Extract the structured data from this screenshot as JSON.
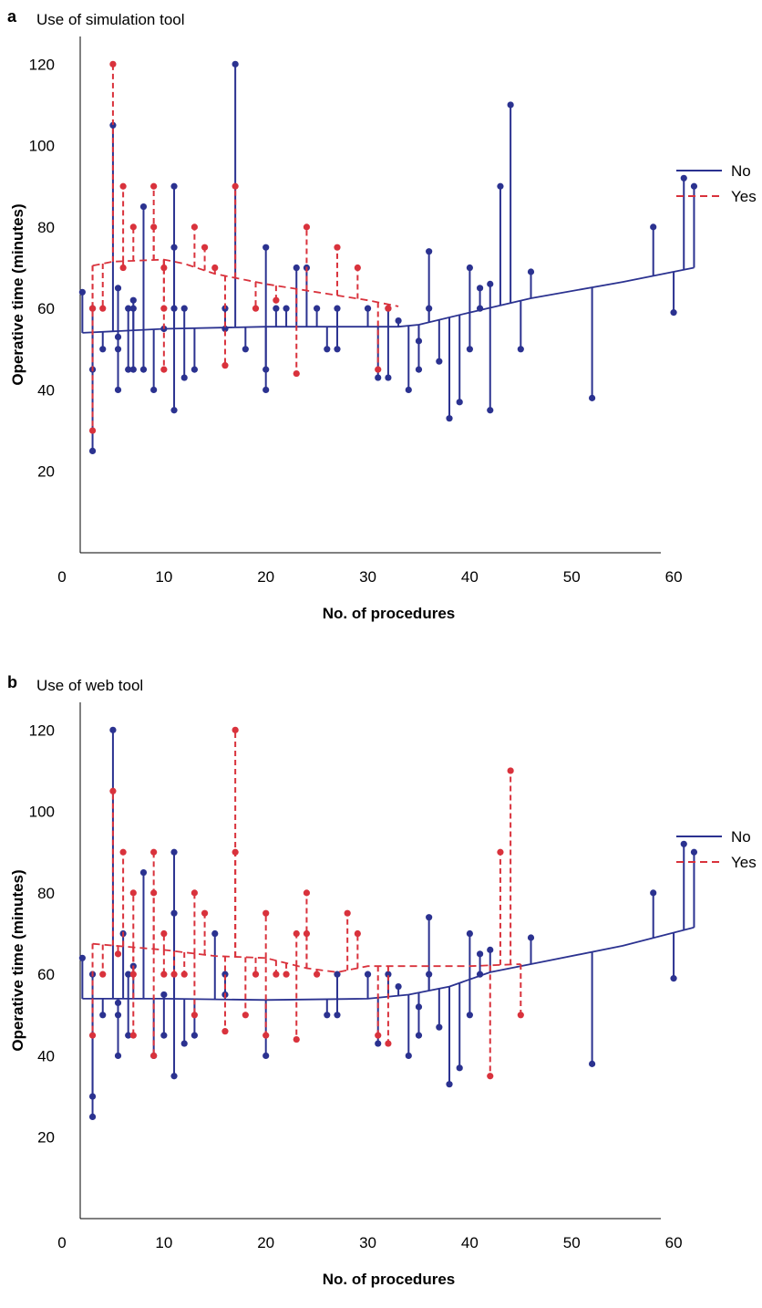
{
  "chart_data": [
    {
      "panel": "a",
      "title": "Use of simulation tool",
      "type": "line",
      "xlabel": "No. of procedures",
      "ylabel": "Operative time (minutes)",
      "xlim": [
        0,
        65
      ],
      "ylim": [
        0,
        125
      ],
      "xticks": [
        0,
        10,
        20,
        30,
        40,
        50,
        60
      ],
      "yticks": [
        20,
        40,
        60,
        80,
        100,
        120
      ],
      "grid": false,
      "legend_position": "right",
      "colors": {
        "No": "#2b3290",
        "Yes": "#d9323c"
      },
      "series": [
        {
          "name": "No",
          "style": "solid",
          "trend": [
            [
              2,
              54
            ],
            [
              10,
              55
            ],
            [
              20,
              55.5
            ],
            [
              33,
              55.5
            ],
            [
              35,
              56
            ],
            [
              40,
              59
            ],
            [
              46,
              62.5
            ],
            [
              55,
              66.5
            ],
            [
              62,
              70
            ]
          ],
          "residuals": [
            [
              2,
              64
            ],
            [
              3,
              60
            ],
            [
              3,
              45
            ],
            [
              3,
              25
            ],
            [
              4,
              50
            ],
            [
              5,
              105
            ],
            [
              5.5,
              65
            ],
            [
              5.5,
              53
            ],
            [
              5.5,
              50
            ],
            [
              5.5,
              40
            ],
            [
              6.5,
              60
            ],
            [
              6.5,
              45
            ],
            [
              7,
              62
            ],
            [
              7,
              60
            ],
            [
              7,
              45
            ],
            [
              8,
              85
            ],
            [
              8,
              45
            ],
            [
              9,
              40
            ],
            [
              10,
              55
            ],
            [
              11,
              90
            ],
            [
              11,
              75
            ],
            [
              11,
              60
            ],
            [
              11,
              35
            ],
            [
              12,
              60
            ],
            [
              12,
              43
            ],
            [
              13,
              45
            ],
            [
              16,
              60
            ],
            [
              16,
              55
            ],
            [
              17,
              120
            ],
            [
              18,
              50
            ],
            [
              20,
              75
            ],
            [
              20,
              45
            ],
            [
              20,
              40
            ],
            [
              21,
              60
            ],
            [
              22,
              60
            ],
            [
              23,
              70
            ],
            [
              24,
              70
            ],
            [
              25,
              60
            ],
            [
              26,
              50
            ],
            [
              27,
              60
            ],
            [
              27,
              50
            ],
            [
              30,
              60
            ],
            [
              31,
              43
            ],
            [
              32,
              60
            ],
            [
              32,
              43
            ],
            [
              33,
              57
            ],
            [
              34,
              40
            ],
            [
              35,
              52
            ],
            [
              35,
              45
            ],
            [
              36,
              74
            ],
            [
              36,
              60
            ],
            [
              37,
              47
            ],
            [
              38,
              33
            ],
            [
              39,
              37
            ],
            [
              40,
              70
            ],
            [
              40,
              50
            ],
            [
              41,
              65
            ],
            [
              41,
              60
            ],
            [
              42,
              66
            ],
            [
              42,
              35
            ],
            [
              43,
              90
            ],
            [
              44,
              110
            ],
            [
              45,
              50
            ],
            [
              46,
              69
            ],
            [
              52,
              38
            ],
            [
              58,
              80
            ],
            [
              60,
              59
            ],
            [
              61,
              92
            ],
            [
              62,
              90
            ]
          ]
        },
        {
          "name": "Yes",
          "style": "dashed",
          "trend": [
            [
              3,
              70.5
            ],
            [
              5,
              71.5
            ],
            [
              10,
              72
            ],
            [
              12,
              71
            ],
            [
              15,
              68.5
            ],
            [
              18,
              67
            ],
            [
              20,
              66
            ],
            [
              25,
              64
            ],
            [
              30,
              62
            ],
            [
              33,
              60.5
            ]
          ],
          "residuals": [
            [
              3,
              60
            ],
            [
              3,
              30
            ],
            [
              4,
              60
            ],
            [
              5,
              120
            ],
            [
              6,
              90
            ],
            [
              6,
              70
            ],
            [
              7,
              80
            ],
            [
              9,
              90
            ],
            [
              9,
              80
            ],
            [
              10,
              70
            ],
            [
              10,
              60
            ],
            [
              10,
              45
            ],
            [
              13,
              80
            ],
            [
              14,
              75
            ],
            [
              15,
              70
            ],
            [
              16,
              46
            ],
            [
              17,
              90
            ],
            [
              19,
              60
            ],
            [
              21,
              62
            ],
            [
              23,
              44
            ],
            [
              24,
              80
            ],
            [
              27,
              75
            ],
            [
              29,
              70
            ],
            [
              31,
              45
            ],
            [
              32,
              60
            ]
          ]
        }
      ]
    },
    {
      "panel": "b",
      "title": "Use of web tool",
      "type": "line",
      "xlabel": "No. of procedures",
      "ylabel": "Operative time (minutes)",
      "xlim": [
        0,
        65
      ],
      "ylim": [
        0,
        125
      ],
      "xticks": [
        0,
        10,
        20,
        30,
        40,
        50,
        60
      ],
      "yticks": [
        20,
        40,
        60,
        80,
        100,
        120
      ],
      "grid": false,
      "legend_position": "right",
      "colors": {
        "No": "#2b3290",
        "Yes": "#d9323c"
      },
      "series": [
        {
          "name": "No",
          "style": "solid",
          "trend": [
            [
              2,
              54
            ],
            [
              10,
              54
            ],
            [
              20,
              53.7
            ],
            [
              30,
              54
            ],
            [
              34,
              55
            ],
            [
              38,
              57
            ],
            [
              42,
              60.5
            ],
            [
              47,
              63
            ],
            [
              55,
              67
            ],
            [
              62,
              71.5
            ]
          ],
          "residuals": [
            [
              2,
              64
            ],
            [
              3,
              60
            ],
            [
              3,
              30
            ],
            [
              3,
              25
            ],
            [
              4,
              50
            ],
            [
              5,
              120
            ],
            [
              5.5,
              53
            ],
            [
              5.5,
              50
            ],
            [
              5.5,
              40
            ],
            [
              6,
              70
            ],
            [
              6.5,
              60
            ],
            [
              6.5,
              45
            ],
            [
              7,
              62
            ],
            [
              8,
              85
            ],
            [
              9,
              40
            ],
            [
              10,
              55
            ],
            [
              10,
              45
            ],
            [
              11,
              90
            ],
            [
              11,
              75
            ],
            [
              11,
              35
            ],
            [
              12,
              43
            ],
            [
              13,
              45
            ],
            [
              15,
              70
            ],
            [
              16,
              60
            ],
            [
              16,
              55
            ],
            [
              20,
              40
            ],
            [
              26,
              50
            ],
            [
              27,
              60
            ],
            [
              27,
              50
            ],
            [
              30,
              60
            ],
            [
              31,
              43
            ],
            [
              32,
              60
            ],
            [
              33,
              57
            ],
            [
              34,
              40
            ],
            [
              35,
              52
            ],
            [
              35,
              45
            ],
            [
              36,
              74
            ],
            [
              36,
              60
            ],
            [
              37,
              47
            ],
            [
              38,
              33
            ],
            [
              39,
              37
            ],
            [
              40,
              70
            ],
            [
              40,
              50
            ],
            [
              41,
              65
            ],
            [
              41,
              60
            ],
            [
              42,
              66
            ],
            [
              46,
              69
            ],
            [
              52,
              38
            ],
            [
              58,
              80
            ],
            [
              60,
              59
            ],
            [
              61,
              92
            ],
            [
              62,
              90
            ]
          ]
        },
        {
          "name": "Yes",
          "style": "dashed",
          "trend": [
            [
              3,
              67.5
            ],
            [
              10,
              66
            ],
            [
              15,
              64.5
            ],
            [
              20,
              64
            ],
            [
              24,
              61.5
            ],
            [
              27,
              60.5
            ],
            [
              30,
              62
            ],
            [
              40,
              62
            ],
            [
              45,
              62.5
            ]
          ],
          "residuals": [
            [
              3,
              45
            ],
            [
              4,
              60
            ],
            [
              5,
              105
            ],
            [
              5.5,
              65
            ],
            [
              6,
              90
            ],
            [
              7,
              80
            ],
            [
              7,
              60
            ],
            [
              7,
              45
            ],
            [
              9,
              90
            ],
            [
              9,
              80
            ],
            [
              9,
              40
            ],
            [
              10,
              70
            ],
            [
              10,
              60
            ],
            [
              11,
              60
            ],
            [
              12,
              60
            ],
            [
              13,
              80
            ],
            [
              13,
              50
            ],
            [
              14,
              75
            ],
            [
              16,
              46
            ],
            [
              17,
              120
            ],
            [
              17,
              90
            ],
            [
              18,
              50
            ],
            [
              19,
              60
            ],
            [
              20,
              75
            ],
            [
              20,
              45
            ],
            [
              21,
              60
            ],
            [
              22,
              60
            ],
            [
              23,
              70
            ],
            [
              23,
              44
            ],
            [
              24,
              80
            ],
            [
              24,
              70
            ],
            [
              25,
              60
            ],
            [
              28,
              75
            ],
            [
              29,
              70
            ],
            [
              31,
              45
            ],
            [
              32,
              43
            ],
            [
              42,
              35
            ],
            [
              43,
              90
            ],
            [
              44,
              110
            ],
            [
              45,
              50
            ]
          ]
        }
      ]
    }
  ]
}
